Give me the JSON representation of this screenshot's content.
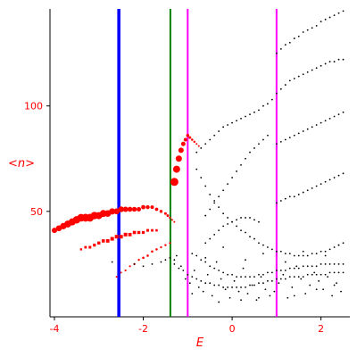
{
  "chart_data": {
    "type": "scatter",
    "title": "",
    "xlabel": "E",
    "ylabel": "<n>",
    "xlim": [
      -4.1,
      2.65
    ],
    "ylim": [
      0,
      146
    ],
    "x_ticks": [
      -4,
      -2,
      0,
      2
    ],
    "x_tick_labels": [
      "-4",
      "-2",
      "0",
      "2"
    ],
    "y_ticks": [
      50,
      100
    ],
    "y_tick_labels": [
      "50",
      "100"
    ],
    "grid": false,
    "legend": "none",
    "vertical_lines": [
      {
        "x": -2.55,
        "color": "#0000ff"
      },
      {
        "x": -1.39,
        "color": "#008000"
      },
      {
        "x": -1.0,
        "color": "#ff00ff"
      },
      {
        "x": 1.0,
        "color": "#ff00ff"
      }
    ],
    "series": [
      {
        "color": "#ff0000",
        "marker": "circle",
        "sizes": [
          3.0,
          3.3,
          3.6,
          3.9,
          4.0,
          4.2,
          4.3,
          4.4,
          4.4,
          4.2,
          4.0,
          3.9,
          3.7,
          3.5,
          3.3,
          3.2,
          3.0,
          2.8,
          2.7,
          2.5,
          2.4,
          2.2,
          2.0,
          1.9,
          1.7,
          1.5,
          1.4,
          1.2,
          1.1,
          1.0
        ],
        "x": [
          -4.0,
          -3.9,
          -3.8,
          -3.7,
          -3.6,
          -3.5,
          -3.4,
          -3.3,
          -3.2,
          -3.1,
          -3.0,
          -2.9,
          -2.8,
          -2.7,
          -2.6,
          -2.5,
          -2.4,
          -2.3,
          -2.2,
          -2.1,
          -2.0,
          -1.9,
          -1.8,
          -1.7,
          -1.6,
          -1.5,
          -1.45,
          -1.4,
          -1.35,
          -1.3
        ],
        "y": [
          41,
          42,
          43,
          44,
          45,
          46,
          47,
          47,
          47,
          48,
          48,
          49,
          49,
          50,
          50,
          51,
          51,
          51,
          51,
          51,
          52,
          52,
          52,
          51,
          50,
          49,
          48,
          47,
          46,
          45
        ]
      },
      {
        "color": "#ff0000",
        "marker": "square",
        "sizes": [
          1.2,
          1.4,
          1.5,
          1.6,
          1.7,
          1.8,
          1.9,
          2.0,
          2.0,
          2.0,
          2.0,
          1.9,
          1.8,
          1.7,
          1.6,
          1.5,
          1.4,
          1.3
        ],
        "x": [
          -3.4,
          -3.3,
          -3.2,
          -3.1,
          -3.0,
          -2.9,
          -2.8,
          -2.7,
          -2.6,
          -2.5,
          -2.4,
          -2.3,
          -2.2,
          -2.1,
          -2.0,
          -1.9,
          -1.8,
          -1.7
        ],
        "y": [
          32,
          33,
          33,
          34,
          35,
          36,
          36,
          37,
          38,
          38,
          39,
          39,
          40,
          40,
          40,
          41,
          41,
          41
        ]
      },
      {
        "color": "#ff0000",
        "marker": "circle",
        "sizes": [
          1.0,
          1.0,
          1.1,
          1.1,
          1.2,
          1.2,
          1.3,
          1.3,
          1.3,
          1.3,
          1.2,
          1.2,
          1.1
        ],
        "x": [
          -2.6,
          -2.5,
          -2.4,
          -2.3,
          -2.2,
          -2.1,
          -2.0,
          -1.9,
          -1.8,
          -1.7,
          -1.6,
          -1.5,
          -1.4
        ],
        "y": [
          19,
          21,
          22,
          24,
          25,
          27,
          28,
          29,
          31,
          32,
          33,
          34,
          35
        ]
      },
      {
        "color": "#ff0000",
        "marker": "circle",
        "sizes": [
          4.5,
          4.0,
          3.5,
          3.0,
          2.5,
          2.0,
          1.8,
          1.5,
          1.3,
          1.2,
          1.0,
          1.0
        ],
        "x": [
          -1.3,
          -1.25,
          -1.2,
          -1.15,
          -1.1,
          -1.05,
          -1.0,
          -0.95,
          -0.9,
          -0.85,
          -0.8,
          -0.75
        ],
        "y": [
          64,
          70,
          75,
          79,
          82,
          84,
          86,
          85,
          84,
          83,
          82,
          81
        ]
      },
      {
        "color": "#000000",
        "marker": "dot",
        "sizes": [
          0.9
        ],
        "x": [
          -1.3,
          -1.2,
          -1.1,
          -1.0,
          -0.9,
          -0.8,
          -0.7,
          -0.6,
          -0.5,
          -0.4,
          -0.3,
          -0.2,
          -0.1,
          0.0,
          0.1,
          0.2,
          0.3,
          0.4,
          0.5,
          0.6,
          0.7,
          0.8,
          0.9,
          1.0,
          1.1,
          1.2,
          1.3,
          1.4,
          1.5,
          1.6,
          1.7,
          1.8,
          1.9,
          2.0,
          2.1,
          2.2,
          2.3,
          2.4,
          2.5
        ],
        "y": [
          25,
          23,
          22,
          20,
          19,
          18,
          17,
          16,
          16,
          15,
          15,
          14,
          14,
          14,
          14,
          14,
          14,
          15,
          15,
          16,
          16,
          17,
          17,
          18,
          18,
          18,
          19,
          19,
          19,
          19,
          20,
          20,
          20,
          20,
          20,
          21,
          21,
          21,
          21
        ]
      },
      {
        "color": "#000000",
        "marker": "dot",
        "sizes": [
          0.9
        ],
        "x": [
          -0.9,
          -0.8,
          -0.7,
          -0.6,
          -0.5,
          -0.4,
          -0.3,
          -0.2,
          -0.1,
          0.0,
          0.1,
          0.2,
          0.3,
          0.4,
          0.5,
          0.6,
          0.7,
          0.8,
          0.9,
          1.0,
          1.1,
          1.2,
          1.3,
          1.4,
          1.5,
          1.6,
          1.7,
          1.8,
          1.9,
          2.0,
          2.1,
          2.2,
          2.3,
          2.4,
          2.5
        ],
        "y": [
          30,
          29,
          27,
          26,
          24,
          23,
          22,
          21,
          20,
          20,
          19,
          19,
          19,
          19,
          19,
          20,
          20,
          21,
          21,
          22,
          22,
          22,
          23,
          23,
          23,
          24,
          24,
          24,
          24,
          25,
          25,
          25,
          25,
          25,
          25
        ]
      },
      {
        "color": "#000000",
        "marker": "dot",
        "sizes": [
          0.9
        ],
        "x": [
          -0.8,
          -0.7,
          -0.6,
          -0.5,
          -0.4,
          -0.3,
          -0.2,
          -0.1,
          0.0,
          0.1,
          0.2,
          0.3,
          0.4,
          0.5,
          0.6,
          0.7,
          0.8,
          0.9,
          1.0,
          1.1,
          1.2,
          1.3,
          1.4,
          1.5,
          1.6,
          1.7,
          1.8,
          1.9,
          2.0,
          2.1,
          2.2,
          2.3,
          2.4,
          2.5
        ],
        "y": [
          70,
          66,
          62,
          58,
          55,
          52,
          49,
          47,
          45,
          43,
          41,
          40,
          38,
          37,
          35,
          34,
          33,
          32,
          31,
          31,
          30,
          30,
          29,
          29,
          29,
          29,
          30,
          30,
          31,
          31,
          32,
          33,
          34,
          35
        ]
      },
      {
        "color": "#000000",
        "marker": "dot",
        "sizes": [
          0.9
        ],
        "x": [
          -0.8,
          -0.7,
          -0.6,
          -0.5,
          -0.4,
          -0.3,
          -0.2,
          -0.1,
          0.0,
          0.1,
          0.2,
          0.3,
          0.4,
          0.5,
          0.6,
          0.7,
          0.8,
          0.9,
          1.0,
          1.1,
          1.2,
          1.3,
          1.4,
          1.5,
          1.6,
          1.7,
          1.8,
          1.9,
          2.0,
          2.1,
          2.2,
          2.3,
          2.4,
          2.5
        ],
        "y": [
          78,
          80,
          82,
          84,
          86,
          88,
          90,
          91,
          92,
          93,
          94,
          95,
          96,
          97,
          98,
          100,
          101,
          103,
          106,
          108,
          110,
          112,
          113,
          114,
          115,
          116,
          117,
          118,
          119,
          120,
          121,
          121,
          122,
          122
        ]
      },
      {
        "color": "#000000",
        "marker": "dot",
        "sizes": [
          0.9
        ],
        "x": [
          1.0,
          1.1,
          1.2,
          1.3,
          1.4,
          1.5,
          1.6,
          1.7,
          1.8,
          1.9,
          2.0,
          2.1,
          2.2,
          2.3,
          2.4,
          2.5
        ],
        "y": [
          125,
          127,
          129,
          130,
          132,
          133,
          135,
          136,
          137,
          138,
          140,
          141,
          142,
          143,
          144,
          145
        ]
      },
      {
        "color": "#000000",
        "marker": "dot",
        "sizes": [
          0.9
        ],
        "x": [
          1.0,
          1.1,
          1.2,
          1.3,
          1.4,
          1.5,
          1.6,
          1.7,
          1.8,
          1.9,
          2.0,
          2.1,
          2.2,
          2.3,
          2.4,
          2.5
        ],
        "y": [
          82,
          83,
          84,
          85,
          86,
          87,
          88,
          89,
          90,
          91,
          92,
          93,
          94,
          95,
          96,
          97
        ]
      },
      {
        "color": "#000000",
        "marker": "dot",
        "sizes": [
          0.9
        ],
        "x": [
          1.0,
          1.1,
          1.2,
          1.3,
          1.4,
          1.5,
          1.6,
          1.7,
          1.8,
          1.9,
          2.0,
          2.1,
          2.2,
          2.3,
          2.4,
          2.5
        ],
        "y": [
          54,
          55,
          56,
          57,
          57,
          58,
          59,
          60,
          61,
          62,
          63,
          64,
          65,
          66,
          67,
          68
        ]
      },
      {
        "color": "#000000",
        "marker": "dot",
        "sizes": [
          0.9
        ],
        "x": [
          -0.6,
          -0.5,
          -0.4,
          -0.3,
          -0.2,
          -0.1,
          0.0,
          0.1,
          0.2,
          0.3,
          0.4,
          0.5,
          0.6,
          0.7,
          0.8
        ],
        "y": [
          48,
          51,
          54,
          57,
          60,
          63,
          66,
          69,
          72,
          75,
          78,
          80,
          82,
          84,
          86
        ]
      },
      {
        "color": "#000000",
        "marker": "dot",
        "sizes": [
          0.9
        ],
        "x": [
          -0.6,
          -0.5,
          -0.4,
          -0.3,
          -0.2,
          -0.1,
          0.0,
          0.1,
          0.2,
          0.3,
          0.4,
          0.5,
          0.6
        ],
        "y": [
          35,
          37,
          39,
          41,
          43,
          44,
          45,
          46,
          47,
          47,
          47,
          46,
          45
        ]
      },
      {
        "color": "#000000",
        "marker": "dot",
        "sizes": [
          0.9
        ],
        "x": [
          -2.7,
          -2.2,
          -2.0,
          -1.8,
          -1.6,
          -1.5,
          -1.4,
          -1.3,
          -1.25,
          -1.15,
          -1.05,
          -0.95,
          -0.85,
          -0.75,
          -0.65,
          -0.55,
          -0.45,
          -0.35,
          -0.25,
          -0.15,
          -0.05,
          0.05,
          0.15,
          0.25,
          0.35,
          0.45,
          0.55,
          0.65,
          0.75,
          0.85,
          0.95,
          1.05,
          1.15,
          1.25,
          1.35,
          1.45,
          1.55,
          1.65,
          1.75,
          1.85,
          1.95,
          2.05,
          2.15,
          2.25,
          2.35,
          2.45,
          -0.6,
          -0.2,
          0.3,
          0.7,
          1.2,
          1.6,
          2.1,
          2.4,
          -0.9,
          -0.3,
          0.2,
          0.6,
          1.4,
          1.9,
          2.3
        ],
        "y": [
          26,
          25,
          24,
          25,
          26,
          27,
          28,
          27,
          29,
          24,
          18,
          16,
          22,
          14,
          12,
          20,
          10,
          26,
          18,
          13,
          9,
          17,
          12,
          23,
          11,
          15,
          8,
          19,
          13,
          10,
          12,
          16,
          20,
          9,
          14,
          24,
          18,
          11,
          15,
          21,
          17,
          13,
          19,
          10,
          16,
          12,
          28,
          33,
          27,
          30,
          26,
          31,
          29,
          34,
          11,
          7,
          8,
          9,
          10,
          13,
          15
        ]
      }
    ]
  }
}
